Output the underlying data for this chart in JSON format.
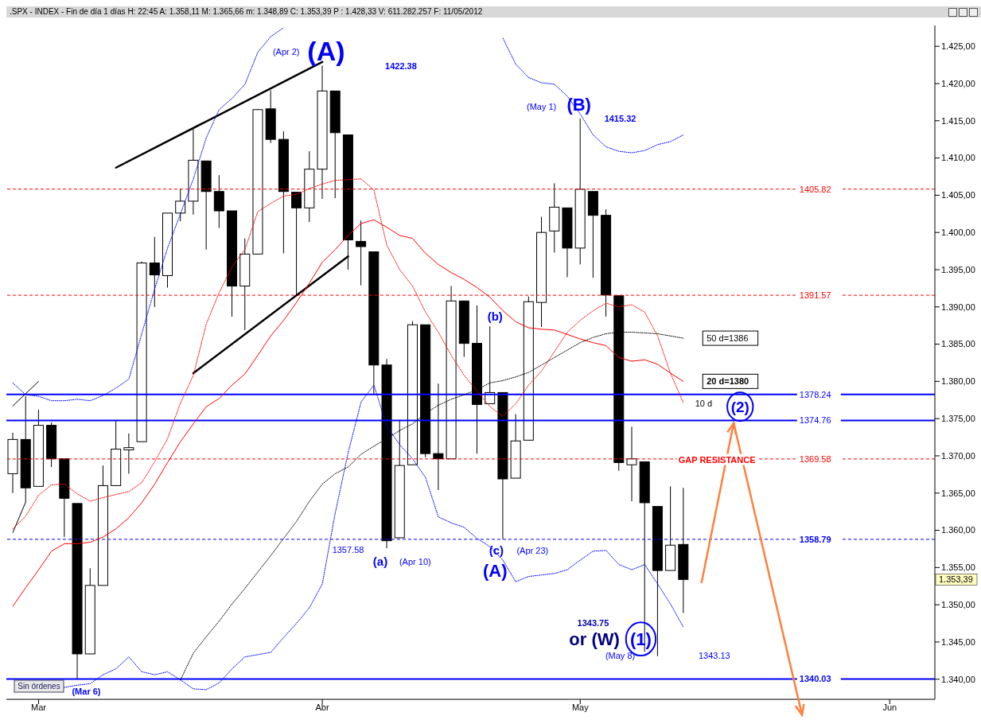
{
  "chart_data": {
    "type": "candlestick",
    "title": ".SPX - INDEX - Fin de día 1 días H: 22:45 A: 1.358,11 M: 1.365,66 m: 1.348,89 C: 1.353,39 P : 1.428,33 V: 611.282.257 F: 11/05/2012",
    "categories": [
      null,
      null,
      "Mar",
      null,
      null,
      null,
      null,
      null,
      null,
      null,
      null,
      null,
      null,
      null,
      null,
      null,
      null,
      null,
      null,
      null,
      null,
      null,
      null,
      null,
      "Abr",
      null,
      null,
      null,
      null,
      null,
      null,
      null,
      null,
      null,
      null,
      null,
      null,
      null,
      null,
      null,
      null,
      null,
      null,
      null,
      "May",
      null,
      null,
      null,
      null,
      null,
      null,
      null,
      null,
      null,
      null,
      null,
      null,
      null,
      null,
      null,
      null,
      null,
      null,
      null,
      null,
      null,
      null,
      null,
      "Jun",
      null,
      null,
      null
    ],
    "ohlc": [
      [
        1367.6,
        1373.1,
        1365.0,
        1372.2
      ],
      [
        1372.2,
        1378.0,
        1363.8,
        1365.7
      ],
      [
        1365.9,
        1376.2,
        1365.9,
        1374.1
      ],
      [
        1374.1,
        1374.5,
        1368.5,
        1369.6
      ],
      [
        1369.6,
        1369.6,
        1359.1,
        1364.3
      ],
      [
        1363.6,
        1363.6,
        1340.0,
        1343.4
      ],
      [
        1343.4,
        1354.9,
        1343.4,
        1352.6
      ],
      [
        1352.6,
        1368.7,
        1352.6,
        1366.0
      ],
      [
        1366.0,
        1374.8,
        1366.0,
        1370.9
      ],
      [
        1370.8,
        1373.0,
        1367.6,
        1371.1
      ],
      [
        1371.9,
        1396.1,
        1371.9,
        1395.9
      ],
      [
        1395.9,
        1399.4,
        1390.0,
        1394.3
      ],
      [
        1394.2,
        1402.6,
        1392.6,
        1402.6
      ],
      [
        1402.6,
        1405.9,
        1401.5,
        1404.2
      ],
      [
        1404.2,
        1414.0,
        1402.4,
        1409.7
      ],
      [
        1409.6,
        1409.6,
        1397.7,
        1405.5
      ],
      [
        1405.5,
        1407.7,
        1400.6,
        1402.9
      ],
      [
        1402.9,
        1402.9,
        1388.7,
        1392.8
      ],
      [
        1392.8,
        1399.2,
        1386.9,
        1397.1
      ],
      [
        1397.1,
        1416.6,
        1397.1,
        1416.5
      ],
      [
        1416.6,
        1419.1,
        1412.0,
        1412.5
      ],
      [
        1412.5,
        1413.6,
        1397.2,
        1405.5
      ],
      [
        1405.4,
        1405.4,
        1391.6,
        1403.3
      ],
      [
        1403.3,
        1410.9,
        1401.4,
        1408.5
      ],
      [
        1408.5,
        1422.4,
        1404.5,
        1419.0
      ],
      [
        1419.0,
        1419.0,
        1404.6,
        1413.4
      ],
      [
        1413.1,
        1413.1,
        1395.0,
        1399.0
      ],
      [
        1398.8,
        1401.6,
        1392.9,
        1398.1
      ],
      [
        1397.4,
        1397.4,
        1378.2,
        1382.2
      ],
      [
        1382.2,
        1383.0,
        1357.6,
        1358.6
      ],
      [
        1359.0,
        1374.7,
        1359.0,
        1368.7
      ],
      [
        1368.8,
        1388.1,
        1368.8,
        1387.6
      ],
      [
        1387.6,
        1387.6,
        1369.8,
        1370.3
      ],
      [
        1370.3,
        1379.7,
        1365.4,
        1369.6
      ],
      [
        1369.6,
        1392.8,
        1369.6,
        1390.8
      ],
      [
        1390.8,
        1390.8,
        1383.3,
        1385.1
      ],
      [
        1385.1,
        1390.2,
        1370.3,
        1376.9
      ],
      [
        1377.0,
        1387.4,
        1377.0,
        1378.5
      ],
      [
        1378.5,
        1378.5,
        1358.8,
        1366.9
      ],
      [
        1367.0,
        1375.6,
        1367.0,
        1372.0
      ],
      [
        1372.1,
        1391.4,
        1372.1,
        1390.7
      ],
      [
        1390.6,
        1402.1,
        1387.3,
        1400.0
      ],
      [
        1400.2,
        1406.6,
        1397.3,
        1403.4
      ],
      [
        1403.3,
        1403.3,
        1394.0,
        1397.9
      ],
      [
        1397.9,
        1415.3,
        1395.7,
        1405.8
      ],
      [
        1405.5,
        1405.5,
        1393.9,
        1402.3
      ],
      [
        1402.3,
        1403.1,
        1388.7,
        1391.6
      ],
      [
        1391.5,
        1391.5,
        1368.0,
        1369.1
      ],
      [
        1368.8,
        1373.9,
        1363.9,
        1369.6
      ],
      [
        1369.2,
        1369.2,
        1343.7,
        1363.7
      ],
      [
        1363.2,
        1363.2,
        1343.1,
        1354.6
      ],
      [
        1354.6,
        1365.9,
        1354.6,
        1358.0
      ],
      [
        1358.1,
        1365.7,
        1348.9,
        1353.4
      ],
      null,
      null,
      null,
      null,
      null,
      null,
      null,
      null,
      null,
      null,
      null,
      null,
      null,
      null,
      null,
      null,
      null,
      null,
      null
    ],
    "series": [
      {
        "type": "line",
        "color": "#0000ff",
        "line_style": "dotted",
        "values": [
          1379.8,
          1378.2,
          1378.0,
          1377.4,
          1377.4,
          1377.6,
          1377.4,
          1378.1,
          1379.1,
          1380.3,
          1386.4,
          1392.4,
          1397.9,
          1402.5,
          1407.2,
          1412.7,
          1416.5,
          1418.0,
          1419.9,
          1424.2,
          1426.3,
          1427.5,
          null,
          null,
          null,
          null,
          null,
          null,
          null,
          null,
          null,
          null,
          null,
          null,
          null,
          null,
          null,
          null,
          1426.1,
          1422.6,
          1420.8,
          1420.1,
          1419.9,
          1418.3,
          1415.9,
          1413.1,
          1411.5,
          1410.9,
          1410.7,
          1411.0,
          1411.8,
          1412.2,
          1413.1,
          null,
          null,
          null,
          null,
          null,
          null,
          null,
          null,
          null,
          null,
          null,
          null,
          null,
          null,
          null,
          null,
          null,
          null,
          null
        ]
      },
      {
        "type": "line",
        "color": "#0000ff",
        "line_style": "dotted",
        "values": [
          null,
          null,
          null,
          null,
          1338.9,
          1339.2,
          1339.4,
          1340.6,
          1341.4,
          1343.0,
          1341.0,
          1340.6,
          1341.0,
          1339.9,
          1338.7,
          1338.6,
          1339.5,
          1341.4,
          1343.0,
          1343.3,
          1343.6,
          1345.6,
          1347.5,
          1349.6,
          1352.8,
          1362.3,
          1370.4,
          1377.2,
          1379.5,
          1374.0,
          1371.5,
          1369.6,
          1367.1,
          1361.8,
          1361.0,
          1360.4,
          1358.9,
          1357.8,
          1356.0,
          1353.1,
          1353.8,
          1354.0,
          1354.2,
          1354.7,
          1356.0,
          1357.2,
          1357.3,
          1355.4,
          1354.7,
          1355.4,
          1352.8,
          1350.1,
          1347.0,
          null,
          null,
          null,
          null,
          null,
          null,
          null,
          null,
          null,
          null,
          null,
          null,
          null,
          null,
          null,
          null,
          null,
          null,
          null
        ]
      },
      {
        "type": "line",
        "name": "10 d",
        "color": "#ff0000",
        "line_style": "dotted",
        "values": [
          1360.2,
          1361.9,
          1364.7,
          1366.1,
          1366.2,
          1364.9,
          1363.9,
          1364.4,
          1364.8,
          1365.2,
          1366.4,
          1369.2,
          1372.3,
          1377.1,
          1380.8,
          1387.7,
          1391.9,
          1395.4,
          1397.7,
          1402.8,
          1403.9,
          1404.9,
          1405.1,
          1405.9,
          1406.5,
          1407.0,
          1407.1,
          1407.2,
          1405.7,
          1398.3,
          1395.0,
          1392.8,
          1389.3,
          1386.6,
          1383.5,
          1380.8,
          1378.7,
          1376.6,
          1375.3,
          1377.0,
          1379.5,
          1381.4,
          1384.0,
          1386.6,
          1388.2,
          1389.5,
          1390.5,
          1390.0,
          1390.3,
          1389.3,
          1386.1,
          1381.1,
          1377.1,
          null,
          null,
          null,
          null,
          null,
          null,
          null,
          null,
          null,
          null,
          null,
          null,
          null,
          null,
          null,
          null,
          null,
          null,
          null
        ]
      },
      {
        "type": "line",
        "name": "20 d=1380",
        "color": "#ff0000",
        "line_style": "solid",
        "values": [
          1349.8,
          1352.3,
          1354.7,
          1357.2,
          1358.2,
          1358.2,
          1358.4,
          1359.1,
          1360.2,
          1361.7,
          1363.7,
          1366.2,
          1369.1,
          1371.9,
          1374.3,
          1376.6,
          1377.7,
          1379.5,
          1381.0,
          1383.5,
          1386.1,
          1388.2,
          1390.6,
          1393.2,
          1396.0,
          1397.7,
          1399.6,
          1401.2,
          1401.7,
          1400.7,
          1399.6,
          1399.2,
          1397.2,
          1395.7,
          1394.6,
          1393.7,
          1392.6,
          1391.3,
          1389.5,
          1388.0,
          1387.2,
          1387.0,
          1386.9,
          1386.3,
          1385.7,
          1385.2,
          1384.8,
          1383.2,
          1382.7,
          1382.9,
          1382.3,
          1381.1,
          1380.0,
          null,
          null,
          null,
          null,
          null,
          null,
          null,
          null,
          null,
          null,
          null,
          null,
          null,
          null,
          null,
          null,
          null,
          null,
          null
        ]
      },
      {
        "type": "line",
        "name": "50 d=1386",
        "color": "#000000",
        "line_style": "dotted",
        "values": [
          null,
          null,
          null,
          null,
          null,
          null,
          null,
          null,
          null,
          null,
          null,
          null,
          null,
          1339.9,
          1343.5,
          1345.7,
          1347.8,
          1350.1,
          1352.2,
          1354.4,
          1356.6,
          1358.9,
          1361.2,
          1363.9,
          1366.2,
          1367.6,
          1368.5,
          1370.2,
          1371.3,
          1372.3,
          1373.4,
          1374.3,
          1375.7,
          1376.8,
          1377.6,
          1378.2,
          1378.9,
          1379.8,
          1380.1,
          1380.6,
          1381.2,
          1382.2,
          1383.2,
          1384.2,
          1385.2,
          1385.9,
          1386.4,
          1386.6,
          1386.6,
          1386.5,
          1386.4,
          1386.1,
          1385.8,
          null,
          null,
          null,
          null,
          null,
          null,
          null,
          null,
          null,
          null,
          null,
          null,
          null,
          null,
          null,
          null,
          null,
          null,
          null
        ]
      },
      {
        "type": "line",
        "color": "#000000",
        "line_style": "solid",
        "values": [
          null,
          null,
          null,
          null,
          null,
          null,
          null,
          null,
          1408.7,
          null,
          null,
          null,
          null,
          null,
          null,
          null,
          null,
          null,
          null,
          null,
          null,
          null,
          null,
          null,
          1422.9,
          null,
          null,
          null,
          null,
          null,
          null,
          null,
          null,
          null,
          null,
          null,
          null,
          null,
          null,
          null,
          null,
          null,
          null,
          null,
          null,
          null,
          null,
          null,
          null,
          null,
          null,
          null,
          null,
          null,
          null,
          null,
          null,
          null,
          null,
          null,
          null,
          null,
          null,
          null,
          null,
          null,
          null,
          null,
          null,
          null,
          null,
          null
        ]
      },
      {
        "type": "line",
        "color": "#000000",
        "line_style": "solid",
        "values": [
          null,
          null,
          null,
          null,
          null,
          null,
          null,
          null,
          null,
          null,
          null,
          null,
          null,
          null,
          1381.1,
          null,
          null,
          null,
          null,
          null,
          null,
          null,
          null,
          null,
          null,
          null,
          1396.8,
          null,
          null,
          null,
          null,
          null,
          null,
          null,
          null,
          null,
          null,
          null,
          null,
          null,
          null,
          null,
          null,
          null,
          null,
          null,
          null,
          null,
          null,
          null,
          null,
          null,
          null,
          null,
          null,
          null,
          null,
          null,
          null,
          null,
          null,
          null,
          null,
          null,
          null,
          null,
          null,
          null,
          null,
          null,
          null,
          null
        ]
      },
      {
        "type": "line",
        "color": "#000000",
        "line_style": "solid",
        "values": [
          1376.7,
          null,
          1380.0,
          null,
          null,
          null,
          null,
          null,
          null,
          null,
          null,
          null,
          null,
          null,
          null,
          null,
          null,
          null,
          null,
          null,
          null,
          null,
          null,
          null,
          null,
          null,
          null,
          null,
          null,
          null,
          null,
          null,
          null,
          null,
          null,
          null,
          null,
          null,
          null,
          null,
          null,
          null,
          null,
          null,
          null,
          null,
          null,
          null,
          null,
          null,
          null,
          null,
          null,
          null,
          null,
          null,
          null,
          null,
          null,
          null,
          null,
          null,
          null,
          null,
          null,
          null,
          null,
          null,
          null,
          null,
          null,
          null
        ]
      },
      {
        "type": "line",
        "color": "#000000",
        "line_style": "solid",
        "values": [
          1359.7,
          1363.8,
          null,
          null,
          null,
          null,
          null,
          null,
          null,
          null,
          null,
          null,
          null,
          null,
          null,
          null,
          null,
          null,
          null,
          null,
          null,
          null,
          null,
          null,
          null,
          null,
          null,
          null,
          null,
          null,
          null,
          null,
          null,
          null,
          null,
          null,
          null,
          null,
          null,
          null,
          null,
          null,
          null,
          null,
          null,
          null,
          null,
          null,
          null,
          null,
          null,
          null,
          null,
          null,
          null,
          null,
          null,
          null,
          null,
          null,
          null,
          null,
          null,
          null,
          null,
          null,
          null,
          null,
          null,
          null,
          null,
          null
        ]
      }
    ],
    "ylim": [
      1337.3,
      1427.8
    ],
    "yticks": [
      {
        "value": 1340,
        "label": "1.340,00"
      },
      {
        "value": 1345,
        "label": "1.345,00"
      },
      {
        "value": 1350,
        "label": "1.350,00"
      },
      {
        "value": 1355,
        "label": "1.355,00"
      },
      {
        "value": 1360,
        "label": "1.360,00"
      },
      {
        "value": 1365,
        "label": "1.365,00"
      },
      {
        "value": 1370,
        "label": "1.370,00"
      },
      {
        "value": 1375,
        "label": "1.375,00"
      },
      {
        "value": 1380,
        "label": "1.380,00"
      },
      {
        "value": 1385,
        "label": "1.385,00"
      },
      {
        "value": 1390,
        "label": "1.390,00"
      },
      {
        "value": 1395,
        "label": "1.395,00"
      },
      {
        "value": 1400,
        "label": "1.400,00"
      },
      {
        "value": 1405,
        "label": "1.405,00"
      },
      {
        "value": 1410,
        "label": "1.410,00"
      },
      {
        "value": 1415,
        "label": "1.415,00"
      },
      {
        "value": 1420,
        "label": "1.420,00"
      },
      {
        "value": 1425,
        "label": "1.425,00"
      }
    ],
    "ref_lines": [
      {
        "axis": "y",
        "value": 1405.82,
        "label": "1405.82",
        "color": "#ff0000",
        "line_style": "dashed"
      },
      {
        "axis": "y",
        "value": 1391.57,
        "label": "1391.57",
        "color": "#ff0000",
        "line_style": "dashed"
      },
      {
        "axis": "y",
        "value": 1378.24,
        "label": "1378.24",
        "color": "#0000ff",
        "line_style": "solid"
      },
      {
        "axis": "y",
        "value": 1374.76,
        "label": "1374.76",
        "color": "#0000ff",
        "line_style": "solid"
      },
      {
        "axis": "y",
        "value": 1369.58,
        "label": "1369.58",
        "color": "#ff0000",
        "line_style": "dashed"
      },
      {
        "axis": "y",
        "value": 1358.79,
        "label": "1358.79",
        "color": "#0000ff",
        "line_style": "dashed"
      },
      {
        "axis": "y",
        "value": 1340.03,
        "label": "1340.03",
        "color": "#0000ff",
        "line_style": "solid"
      }
    ],
    "annotations": [
      "(A)",
      "(Apr 2)",
      "1422.38",
      "(May 1)",
      "(B)",
      "1415.32",
      "(b)",
      "1357.58",
      "(a)",
      "(Apr 10)",
      "(c)",
      "(Apr 23)",
      "(A)",
      "(Mar 6)",
      "1343.75",
      "or (W)",
      "(1)",
      "(May 8)",
      "1343.13",
      "(2)",
      "GAP RESISTANCE",
      "1.353,39",
      "Sin órdenes"
    ]
  }
}
